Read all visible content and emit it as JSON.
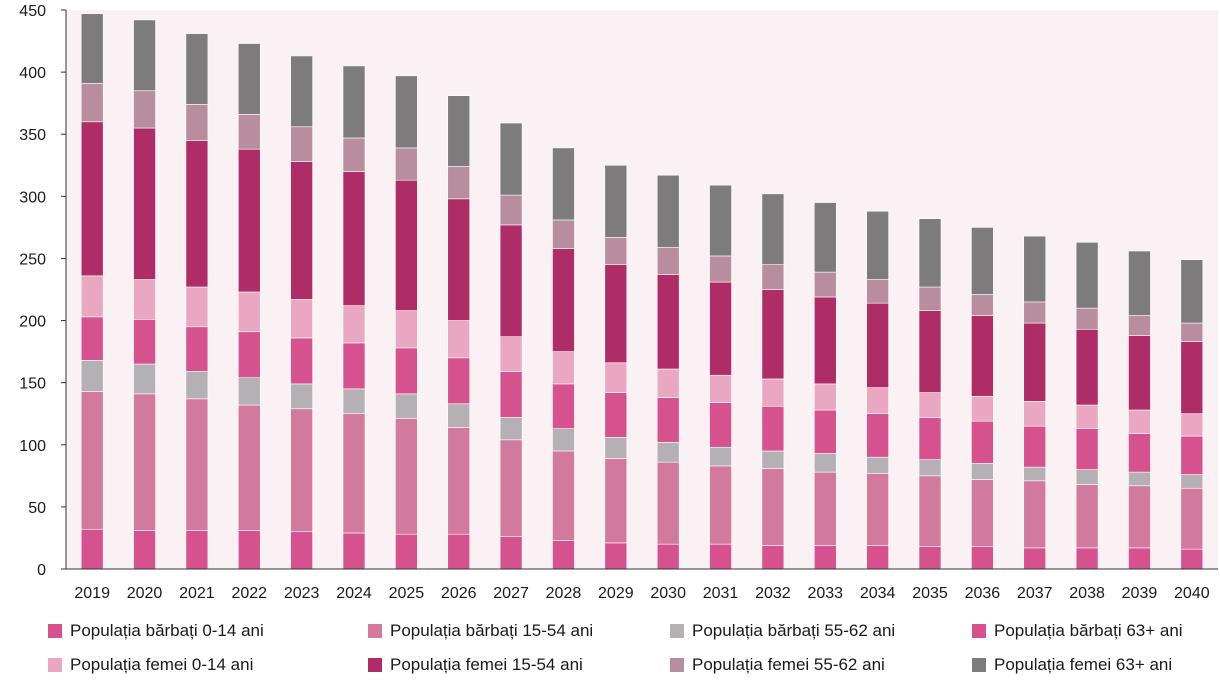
{
  "chart_data": {
    "type": "bar",
    "stacked": true,
    "title": "",
    "xlabel": "",
    "ylabel": "",
    "ylim": [
      0,
      450
    ],
    "yticks": [
      0,
      50,
      100,
      150,
      200,
      250,
      300,
      350,
      400,
      450
    ],
    "grid": false,
    "legend_position": "bottom",
    "plot_background": "#f9f1f4",
    "categories": [
      "2019",
      "2020",
      "2021",
      "2022",
      "2023",
      "2024",
      "2025",
      "2026",
      "2027",
      "2028",
      "2029",
      "2030",
      "2031",
      "2032",
      "2033",
      "2034",
      "2035",
      "2036",
      "2037",
      "2038",
      "2039",
      "2040"
    ],
    "series": [
      {
        "name": "Populația bărbați 0-14 ani",
        "color": "#d6528f",
        "values": [
          32,
          31,
          31,
          31,
          30,
          29,
          28,
          28,
          26,
          23,
          21,
          20,
          20,
          19,
          19,
          19,
          18,
          18,
          17,
          17,
          17,
          16
        ]
      },
      {
        "name": "Populația bărbați 15-54 ani",
        "color": "#d27a9e",
        "values": [
          111,
          110,
          106,
          101,
          99,
          96,
          93,
          86,
          78,
          72,
          68,
          66,
          63,
          62,
          59,
          58,
          57,
          54,
          54,
          51,
          50,
          49
        ]
      },
      {
        "name": "Populația bărbați 55-62 ani",
        "color": "#b5b0b3",
        "values": [
          25,
          24,
          22,
          22,
          20,
          20,
          20,
          19,
          18,
          18,
          17,
          16,
          15,
          14,
          15,
          13,
          13,
          13,
          11,
          12,
          11,
          11
        ]
      },
      {
        "name": "Populația bărbați 63+ ani",
        "color": "#d6528f",
        "values": [
          35,
          36,
          36,
          37,
          37,
          37,
          37,
          37,
          37,
          36,
          36,
          36,
          36,
          36,
          35,
          35,
          34,
          34,
          33,
          33,
          31,
          31
        ]
      },
      {
        "name": "Populația  femei 0-14 ani",
        "color": "#eaa7c1",
        "values": [
          33,
          32,
          32,
          32,
          31,
          30,
          30,
          30,
          28,
          26,
          24,
          23,
          22,
          22,
          21,
          21,
          20,
          20,
          20,
          19,
          19,
          18
        ]
      },
      {
        "name": "Populația femei 15-54 ani",
        "color": "#ae2d67",
        "values": [
          124,
          122,
          118,
          115,
          111,
          108,
          105,
          98,
          90,
          83,
          79,
          76,
          75,
          72,
          70,
          68,
          66,
          65,
          63,
          61,
          60,
          58
        ]
      },
      {
        "name": "Populația femei 55-62 ani",
        "color": "#b88d9e",
        "values": [
          31,
          30,
          29,
          28,
          28,
          27,
          26,
          26,
          24,
          23,
          22,
          22,
          21,
          20,
          20,
          19,
          19,
          17,
          17,
          17,
          16,
          15
        ]
      },
      {
        "name": "Populația  femei 63+ ani",
        "color": "#7d7b7c",
        "values": [
          56,
          57,
          57,
          57,
          57,
          58,
          58,
          57,
          58,
          58,
          58,
          58,
          57,
          57,
          56,
          55,
          55,
          54,
          53,
          53,
          52,
          51
        ]
      }
    ]
  }
}
